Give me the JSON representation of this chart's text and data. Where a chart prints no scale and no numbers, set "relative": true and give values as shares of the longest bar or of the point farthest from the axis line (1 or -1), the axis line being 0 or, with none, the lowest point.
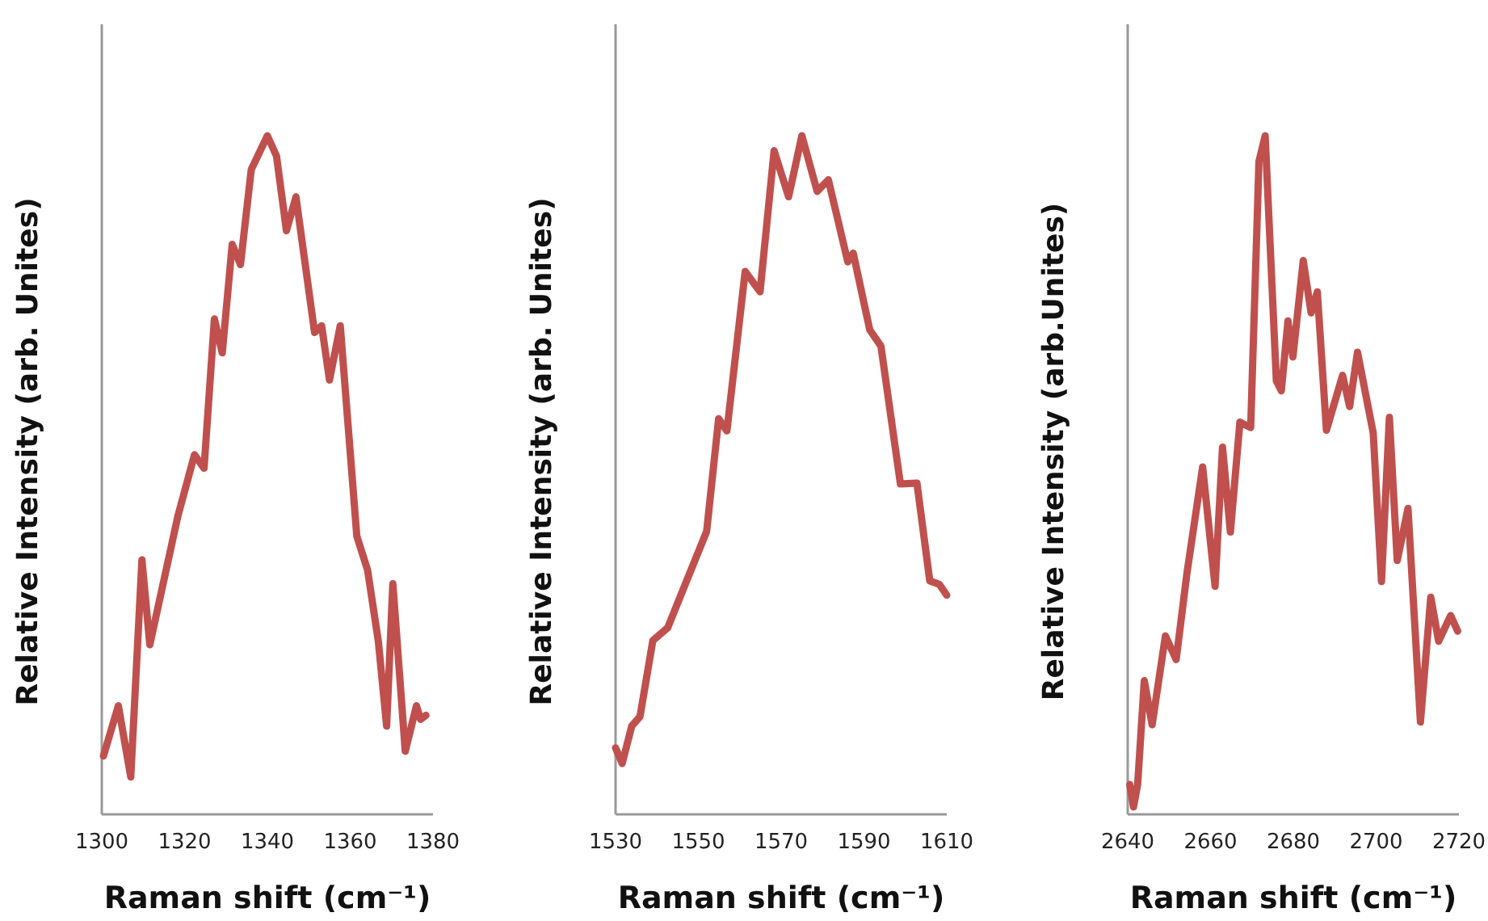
{
  "chart_data": [
    {
      "type": "line",
      "xlabel": "Raman shift (cm⁻¹)",
      "ylabel": "Relative Intensity (arb. Unites)",
      "relative": true,
      "xlim": [
        1300,
        1380
      ],
      "xticks": [
        1300,
        1320,
        1340,
        1360,
        1380
      ],
      "series": [
        {
          "color": "#c0504d",
          "x": [
            1300.4,
            1304,
            1307,
            1309.7,
            1311.6,
            1318.4,
            1322.4,
            1324.7,
            1327.2,
            1329.1,
            1331.5,
            1333.5,
            1336.1,
            1340,
            1342.2,
            1344.6,
            1346.9,
            1351.4,
            1353.1,
            1355,
            1357.6,
            1361.6,
            1364.2,
            1366.8,
            1368.8,
            1370.3,
            1373.3,
            1376,
            1377,
            1378.3
          ],
          "values": [
            0.086,
            0.16,
            0.055,
            0.375,
            0.25,
            0.44,
            0.53,
            0.51,
            0.73,
            0.68,
            0.84,
            0.81,
            0.95,
            1,
            0.97,
            0.86,
            0.91,
            0.71,
            0.72,
            0.64,
            0.72,
            0.41,
            0.36,
            0.255,
            0.13,
            0.34,
            0.093,
            0.16,
            0.14,
            0.146
          ]
        }
      ]
    },
    {
      "type": "line",
      "xlabel": "Raman shift (cm⁻¹)",
      "ylabel": "Relative Intensity (arb. Unites)",
      "relative": true,
      "xlim": [
        1530,
        1610
      ],
      "xticks": [
        1530,
        1550,
        1570,
        1590,
        1610
      ],
      "series": [
        {
          "color": "#c0504d",
          "x": [
            1530,
            1531.6,
            1533.9,
            1535.9,
            1539,
            1542.6,
            1545.9,
            1552,
            1554.9,
            1556.9,
            1561.3,
            1564.9,
            1568.3,
            1571.8,
            1575,
            1578.7,
            1581.4,
            1586.1,
            1587.4,
            1591.4,
            1594.1,
            1598.8,
            1602.8,
            1605.9,
            1608.2,
            1610
          ],
          "values": [
            0.098,
            0.075,
            0.13,
            0.144,
            0.256,
            0.275,
            0.325,
            0.417,
            0.583,
            0.565,
            0.8,
            0.77,
            0.978,
            0.91,
            1,
            0.918,
            0.935,
            0.814,
            0.827,
            0.714,
            0.69,
            0.487,
            0.488,
            0.344,
            0.339,
            0.323
          ]
        }
      ]
    },
    {
      "type": "line",
      "xlabel": "Raman shift (cm⁻¹)",
      "ylabel": "Relative Intensity (arb.Unites)",
      "relative": true,
      "xlim": [
        2640,
        2720
      ],
      "xticks": [
        2640,
        2660,
        2680,
        2700,
        2720
      ],
      "series": [
        {
          "color": "#c0504d",
          "x": [
            2640.5,
            2641.4,
            2642.4,
            2644,
            2645.9,
            2649.1,
            2651.7,
            2654.3,
            2658.1,
            2661.1,
            2662.9,
            2664.8,
            2667.1,
            2669.7,
            2671.7,
            2673.2,
            2675.9,
            2677.1,
            2678.7,
            2679.9,
            2682.4,
            2684.3,
            2685.8,
            2688,
            2691.9,
            2693.6,
            2695.5,
            2699.3,
            2701.3,
            2703.2,
            2705.1,
            2707.7,
            2710.7,
            2713.2,
            2715.1,
            2718,
            2719.7
          ],
          "values": [
            0.044,
            0.011,
            0.044,
            0.197,
            0.132,
            0.263,
            0.228,
            0.355,
            0.512,
            0.336,
            0.541,
            0.416,
            0.578,
            0.57,
            0.962,
            1,
            0.639,
            0.624,
            0.727,
            0.674,
            0.816,
            0.739,
            0.77,
            0.566,
            0.647,
            0.601,
            0.681,
            0.562,
            0.343,
            0.585,
            0.374,
            0.451,
            0.136,
            0.32,
            0.255,
            0.293,
            0.27
          ]
        }
      ]
    }
  ]
}
